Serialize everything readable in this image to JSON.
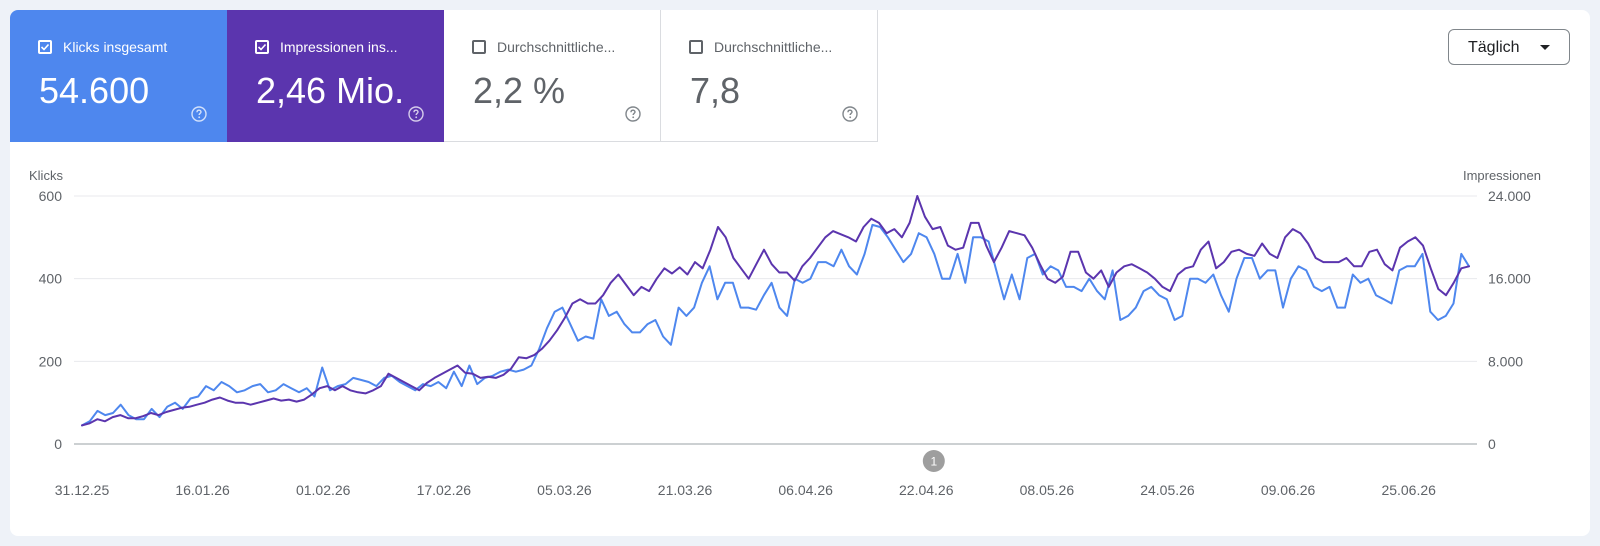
{
  "cards": [
    {
      "label": "Klicks insgesamt",
      "value": "54.600",
      "checked": true,
      "color": "#4e87ee"
    },
    {
      "label": "Impressionen ins...",
      "value": "2,46 Mio.",
      "checked": true,
      "color": "#5b35ae"
    },
    {
      "label": "Durchschnittliche...",
      "value": "2,2 %",
      "checked": false,
      "color": "#ffffff"
    },
    {
      "label": "Durchschnittliche...",
      "value": "7,8",
      "checked": false,
      "color": "#ffffff"
    }
  ],
  "granularity": "Täglich",
  "annotation_marker": "1",
  "chart_data": {
    "type": "line",
    "left_axis": {
      "title": "Klicks",
      "min": 0,
      "max": 600,
      "ticks": [
        "0",
        "200",
        "400",
        "600"
      ],
      "tick_values": [
        0,
        200,
        400,
        600
      ]
    },
    "right_axis": {
      "title": "Impressionen",
      "min": 0,
      "max": 24000,
      "ticks": [
        "0",
        "8.000",
        "16.000",
        "24.000"
      ],
      "tick_values": [
        0,
        8000,
        16000,
        24000
      ]
    },
    "x_start": "2025-12-31",
    "x_end": "2026-07-03",
    "x_tick_labels": [
      "31.12.25",
      "16.01.26",
      "01.02.26",
      "17.02.26",
      "05.03.26",
      "21.03.26",
      "06.04.26",
      "22.04.26",
      "08.05.26",
      "24.05.26",
      "09.06.26",
      "25.06.26"
    ],
    "annotation_date": "2026-04-23",
    "grid": true,
    "series": [
      {
        "axis": "left",
        "color": "#4e87ee",
        "values": [
          45,
          55,
          80,
          70,
          75,
          95,
          70,
          60,
          60,
          85,
          65,
          90,
          100,
          85,
          110,
          115,
          140,
          130,
          150,
          140,
          125,
          130,
          140,
          145,
          125,
          130,
          145,
          135,
          125,
          135,
          115,
          185,
          130,
          140,
          145,
          160,
          155,
          150,
          140,
          160,
          165,
          150,
          140,
          130,
          145,
          140,
          150,
          135,
          175,
          140,
          190,
          145,
          160,
          165,
          175,
          180,
          175,
          180,
          190,
          230,
          280,
          320,
          330,
          290,
          250,
          260,
          255,
          350,
          310,
          320,
          290,
          270,
          270,
          290,
          300,
          260,
          240,
          330,
          310,
          330,
          390,
          430,
          350,
          390,
          390,
          330,
          330,
          325,
          360,
          390,
          330,
          310,
          400,
          390,
          400,
          440,
          440,
          430,
          470,
          430,
          410,
          460,
          530,
          525,
          500,
          470,
          440,
          460,
          510,
          500,
          460,
          400,
          400,
          460,
          390,
          500,
          500,
          490,
          420,
          350,
          410,
          350,
          450,
          460,
          410,
          430,
          420,
          380,
          380,
          370,
          400,
          370,
          350,
          420,
          300,
          310,
          330,
          370,
          380,
          360,
          350,
          300,
          310,
          400,
          400,
          390,
          410,
          360,
          320,
          400,
          450,
          450,
          400,
          420,
          420,
          330,
          400,
          430,
          420,
          380,
          370,
          380,
          330,
          330,
          410,
          390,
          400,
          360,
          350,
          340,
          420,
          430,
          430,
          460,
          320,
          300,
          310,
          340,
          460,
          430
        ],
        "interpolated": true
      },
      {
        "axis": "right",
        "color": "#5b35ae",
        "values": [
          1800,
          2000,
          2400,
          2200,
          2600,
          2800,
          2500,
          2500,
          2700,
          3000,
          2800,
          3100,
          3300,
          3500,
          3600,
          3800,
          4000,
          4300,
          4500,
          4200,
          4000,
          4000,
          3800,
          4000,
          4200,
          4400,
          4200,
          4300,
          4100,
          4300,
          4800,
          5400,
          5600,
          5200,
          5600,
          5200,
          5000,
          4900,
          5200,
          5600,
          6800,
          6400,
          6000,
          5600,
          5200,
          5900,
          6400,
          6800,
          7200,
          7600,
          6900,
          6800,
          6400,
          6500,
          6400,
          6700,
          7300,
          8400,
          8300,
          8600,
          9200,
          10000,
          11000,
          12200,
          13600,
          14000,
          13600,
          13600,
          14400,
          15600,
          16400,
          15400,
          14400,
          15200,
          14800,
          16000,
          17000,
          16500,
          17100,
          16400,
          17600,
          17000,
          18800,
          21000,
          20000,
          18000,
          17000,
          16000,
          17400,
          18800,
          17400,
          16600,
          16600,
          15800,
          17200,
          18000,
          19000,
          20000,
          20600,
          20300,
          20000,
          19600,
          21000,
          21800,
          21400,
          20400,
          20800,
          20000,
          21400,
          24000,
          22000,
          20800,
          21000,
          19200,
          18800,
          19000,
          21400,
          21400,
          19200,
          17600,
          19000,
          20600,
          20400,
          20200,
          19000,
          17400,
          16000,
          15600,
          16200,
          18600,
          18600,
          16600,
          16000,
          16800,
          15200,
          16600,
          17200,
          17400,
          17000,
          16600,
          16000,
          15200,
          14800,
          16400,
          17000,
          17200,
          18800,
          19600,
          17000,
          17600,
          18600,
          18800,
          18400,
          18200,
          19400,
          18400,
          18000,
          20000,
          20800,
          20400,
          19400,
          18000,
          17600,
          17600,
          17600,
          18000,
          17200,
          17200,
          18600,
          18800,
          17400,
          16800,
          19000,
          19600,
          20000,
          19200,
          17000,
          15000,
          14400,
          15600,
          17000,
          17200
        ],
        "interpolated": true
      }
    ]
  }
}
